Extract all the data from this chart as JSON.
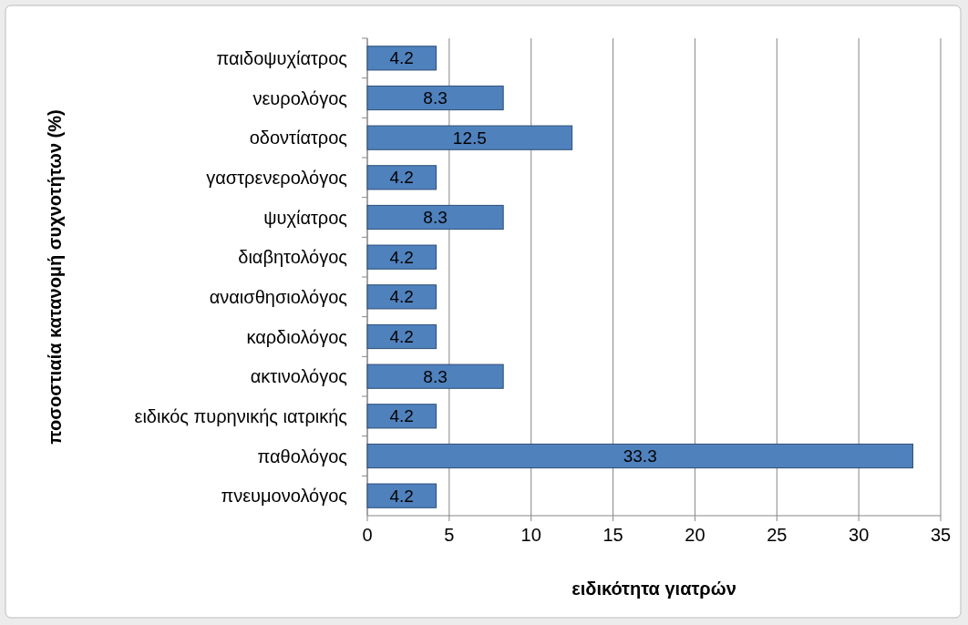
{
  "chart_data": {
    "type": "bar",
    "orientation": "horizontal",
    "xlabel": "ειδικότητα γιατρών",
    "ylabel": "ποσοστιαία κατανομή συχνοτήτων (%)",
    "categories": [
      "παιδοψυχίατρος",
      "νευρολόγος",
      "οδοντίατρος",
      "γαστρενερολόγος",
      "ψυχίατρος",
      "διαβητολόγος",
      "αναισθησιολόγος",
      "καρδιολόγος",
      "ακτινολόγος",
      "ειδικός πυρηνικής ιατρικής",
      "παθολόγος",
      "πνευμονολόγος"
    ],
    "values": [
      4.2,
      8.3,
      12.5,
      4.2,
      8.3,
      4.2,
      4.2,
      4.2,
      8.3,
      4.2,
      33.3,
      4.2
    ],
    "color": "#4f81bd",
    "xlim": [
      0,
      35
    ],
    "xticks": [
      0,
      5,
      10,
      15,
      20,
      25,
      30,
      35
    ],
    "grid": "x",
    "data_labels": true
  }
}
